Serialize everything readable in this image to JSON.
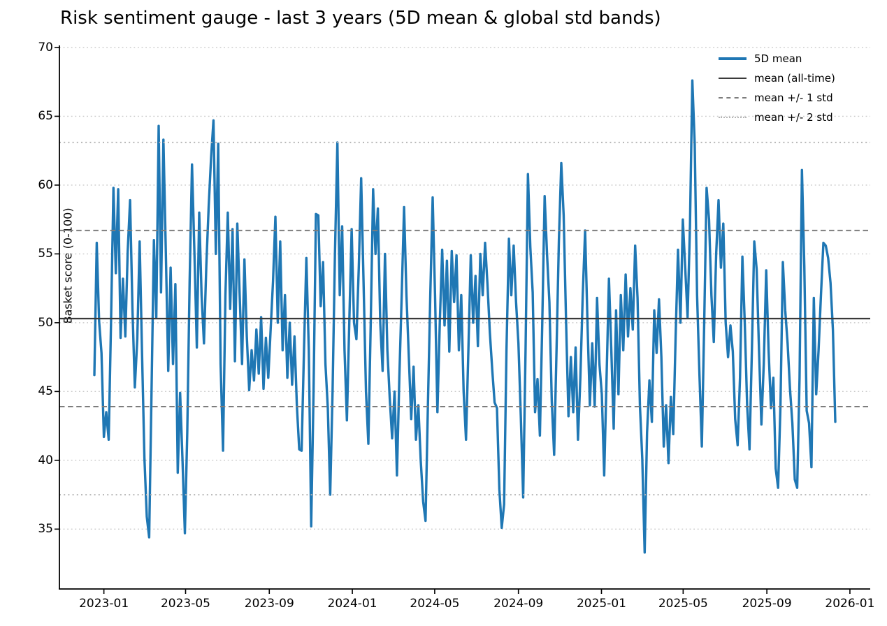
{
  "chart_data": {
    "type": "line",
    "title": "Risk sentiment gauge - last 3 years (5D mean & global std bands)",
    "xlabel": "",
    "ylabel": "Basket score (0-100)",
    "y_ticks": [
      35,
      40,
      45,
      50,
      55,
      60,
      65,
      70
    ],
    "ylim": [
      30.65,
      70.15
    ],
    "grid": "horizontal dotted gridlines at each y tick",
    "legend_position": "upper right, no frame",
    "x_ticks": [
      {
        "label": "2023-01",
        "day": 14
      },
      {
        "label": "2023-05",
        "day": 134
      },
      {
        "label": "2023-09",
        "day": 257
      },
      {
        "label": "2024-01",
        "day": 379
      },
      {
        "label": "2024-05",
        "day": 500
      },
      {
        "label": "2024-09",
        "day": 623
      },
      {
        "label": "2025-01",
        "day": 745
      },
      {
        "label": "2025-05",
        "day": 865
      },
      {
        "label": "2025-09",
        "day": 988
      },
      {
        "label": "2026-01",
        "day": 1110
      }
    ],
    "series": [
      {
        "name": "5D mean",
        "color": "#1f77b4",
        "style": "solid",
        "line_width": 3.4,
        "start_date": "2022-12-18",
        "interval_days": 3.5,
        "values": [
          46.2,
          55.8,
          50.1,
          47.8,
          41.7,
          43.5,
          41.5,
          50.2,
          59.8,
          53.6,
          59.7,
          48.9,
          53.2,
          49.0,
          55.2,
          58.9,
          51.0,
          45.3,
          48.8,
          55.9,
          47.8,
          40.2,
          35.9,
          34.4,
          45.0,
          56.0,
          50.4,
          64.3,
          52.2,
          63.3,
          55.0,
          46.5,
          54.0,
          47.0,
          52.8,
          39.1,
          44.9,
          40.0,
          34.7,
          42.0,
          53.0,
          61.5,
          55.0,
          48.2,
          58.0,
          52.0,
          48.5,
          54.2,
          58.5,
          62.0,
          64.7,
          55.0,
          63.0,
          47.0,
          40.7,
          52.0,
          58.0,
          51.0,
          56.8,
          47.2,
          57.2,
          52.0,
          47.0,
          54.6,
          49.0,
          45.1,
          48.0,
          45.8,
          49.5,
          46.3,
          50.4,
          45.2,
          48.9,
          46.0,
          49.5,
          53.0,
          57.7,
          50.0,
          55.9,
          48.0,
          52.0,
          46.0,
          50.0,
          45.5,
          49.0,
          44.0,
          40.8,
          40.7,
          48.0,
          54.7,
          48.0,
          35.2,
          45.0,
          57.9,
          57.8,
          51.2,
          54.4,
          47.0,
          43.8,
          37.5,
          45.0,
          55.0,
          63.1,
          52.0,
          57.0,
          48.0,
          42.9,
          50.0,
          56.8,
          50.0,
          48.8,
          54.0,
          60.5,
          53.0,
          45.0,
          41.2,
          50.0,
          59.7,
          55.0,
          58.3,
          50.0,
          46.5,
          55.0,
          48.0,
          44.5,
          41.6,
          45.0,
          38.9,
          46.0,
          52.0,
          58.4,
          52.0,
          47.5,
          43.0,
          46.8,
          41.5,
          44.0,
          40.0,
          37.0,
          35.6,
          44.0,
          52.0,
          59.1,
          52.0,
          43.5,
          50.0,
          55.3,
          49.8,
          54.5,
          47.9,
          55.2,
          51.5,
          54.9,
          48.0,
          52.0,
          45.0,
          41.5,
          48.0,
          54.9,
          50.0,
          53.4,
          48.3,
          55.0,
          52.0,
          55.8,
          52.8,
          49.3,
          46.6,
          44.2,
          43.8,
          37.9,
          35.1,
          36.8,
          48.0,
          56.1,
          52.0,
          55.6,
          51.5,
          48.5,
          43.2,
          37.3,
          48.0,
          60.8,
          55.5,
          52.2,
          43.5,
          45.9,
          41.8,
          50.0,
          59.2,
          55.0,
          51.5,
          44.3,
          40.4,
          48.0,
          56.0,
          61.6,
          57.8,
          50.0,
          43.2,
          47.5,
          43.5,
          48.2,
          41.5,
          46.0,
          52.0,
          56.7,
          50.0,
          44.0,
          48.5,
          43.9,
          51.8,
          47.0,
          44.8,
          38.9,
          46.0,
          53.2,
          48.0,
          42.3,
          50.9,
          44.8,
          52.0,
          48.0,
          53.5,
          49.0,
          52.5,
          49.5,
          55.6,
          51.8,
          44.0,
          40.1,
          33.3,
          42.0,
          45.8,
          42.8,
          50.9,
          47.8,
          51.7,
          47.5,
          41.0,
          44.0,
          39.8,
          44.6,
          41.9,
          49.0,
          55.3,
          50.0,
          57.5,
          54.0,
          50.4,
          57.0,
          67.6,
          63.0,
          52.0,
          46.2,
          41.0,
          50.0,
          59.8,
          57.5,
          52.0,
          48.6,
          55.0,
          58.9,
          54.0,
          57.2,
          50.0,
          47.5,
          49.8,
          47.9,
          43.0,
          41.1,
          46.0,
          54.8,
          50.0,
          44.0,
          40.8,
          48.0,
          55.9,
          53.9,
          48.0,
          42.6,
          47.0,
          53.8,
          48.0,
          43.8,
          46.0,
          39.4,
          38.0,
          44.0,
          54.4,
          50.9,
          48.5,
          45.2,
          42.7,
          38.6,
          38.0,
          46.0,
          61.1,
          54.1,
          43.6,
          42.7,
          39.5,
          51.8,
          44.8,
          48.0,
          52.0,
          55.8,
          55.6,
          54.7,
          52.9,
          49.5,
          42.8
        ]
      }
    ],
    "reference_lines": [
      {
        "name": "mean (all-time)",
        "value": 50.3,
        "style": "solid",
        "color": "#3a3a3a",
        "line_width": 2.3
      },
      {
        "name": "mean + 1 std",
        "value": 56.7,
        "style": "dashed",
        "color": "#7d7d7d",
        "line_width": 2.0
      },
      {
        "name": "mean - 1 std",
        "value": 43.9,
        "style": "dashed",
        "color": "#7d7d7d",
        "line_width": 2.0
      },
      {
        "name": "mean + 2 std",
        "value": 63.1,
        "style": "dotted",
        "color": "#b5b5b5",
        "line_width": 2.0
      },
      {
        "name": "mean - 2 std",
        "value": 37.5,
        "style": "dotted",
        "color": "#b5b5b5",
        "line_width": 2.0
      }
    ],
    "legend": [
      {
        "label": "5D mean",
        "swatch": "solid-blue-thick"
      },
      {
        "label": "mean (all-time)",
        "swatch": "solid-gray"
      },
      {
        "label": "mean +/- 1 std",
        "swatch": "dashed-gray"
      },
      {
        "label": "mean +/- 2 std",
        "swatch": "dotted-lightgray"
      }
    ],
    "colors": {
      "series_blue": "#1f77b4",
      "mean_line": "#3a3a3a",
      "std1_line": "#7d7d7d",
      "std2_line": "#b5b5b5",
      "gridline": "#c9c9c9",
      "spine": "#000000",
      "text": "#000000",
      "background": "#ffffff"
    }
  }
}
